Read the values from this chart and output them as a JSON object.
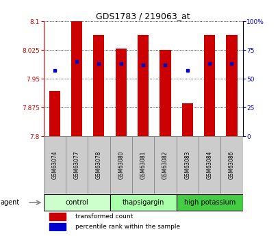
{
  "title": "GDS1783 / 219063_at",
  "samples": [
    "GSM63074",
    "GSM63077",
    "GSM63078",
    "GSM63080",
    "GSM63081",
    "GSM63082",
    "GSM63083",
    "GSM63084",
    "GSM63086"
  ],
  "bar_values": [
    7.918,
    8.1,
    8.065,
    8.028,
    8.065,
    8.025,
    7.885,
    8.065,
    8.065
  ],
  "bar_base": 7.8,
  "percentile_values": [
    57,
    65,
    63,
    63,
    62,
    62,
    57,
    63,
    63
  ],
  "ylim_left": [
    7.8,
    8.1
  ],
  "ylim_right": [
    0,
    100
  ],
  "yticks_left": [
    7.8,
    7.875,
    7.95,
    8.025,
    8.1
  ],
  "yticks_right": [
    0,
    25,
    50,
    75,
    100
  ],
  "ytick_labels_left": [
    "7.8",
    "7.875",
    "7.95",
    "8.025",
    "8.1"
  ],
  "ytick_labels_right": [
    "0",
    "25",
    "50",
    "75",
    "100%"
  ],
  "groups": [
    {
      "label": "control",
      "indices": [
        0,
        1,
        2
      ],
      "color": "#ccffcc"
    },
    {
      "label": "thapsigargin",
      "indices": [
        3,
        4,
        5
      ],
      "color": "#aaffaa"
    },
    {
      "label": "high potassium",
      "indices": [
        6,
        7,
        8
      ],
      "color": "#44cc44"
    }
  ],
  "bar_color": "#cc0000",
  "percentile_color": "#0000cc",
  "grid_color": "black",
  "background_color": "white",
  "plot_bg": "white",
  "agent_label": "agent",
  "label_bg": "#cccccc"
}
